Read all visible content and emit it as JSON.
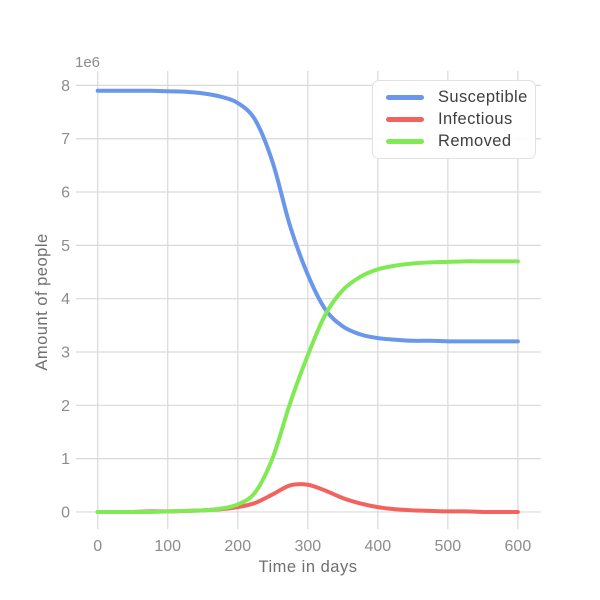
{
  "figure": {
    "background_color": "#ffffff",
    "grid_color": "#d9d9d9",
    "tick_label_color": "#8c8c8c",
    "axis_label_color": "#6f6f6f",
    "legend_text_color": "#3f3f3f",
    "legend_border_color": "#e2e2e2"
  },
  "chart_data": {
    "type": "line",
    "title": "",
    "xlabel": "Time in days",
    "ylabel": "Amount of people",
    "y_offset_label": "1e6",
    "values_unit": "millions of people (axis shows value x 1e6)",
    "grid": true,
    "legend_position": "upper right",
    "xlim": [
      -31,
      633
    ],
    "ylim": [
      -0.32,
      8.27
    ],
    "x_ticks": [
      0,
      100,
      200,
      300,
      400,
      500,
      600
    ],
    "y_ticks": [
      0,
      1,
      2,
      3,
      4,
      5,
      6,
      7,
      8
    ],
    "x": [
      0,
      25,
      50,
      75,
      100,
      125,
      150,
      175,
      200,
      225,
      250,
      275,
      300,
      325,
      350,
      375,
      400,
      425,
      450,
      475,
      500,
      525,
      550,
      575,
      600
    ],
    "series": [
      {
        "name": "Susceptible",
        "color": "#6a96ec",
        "values": [
          7.9,
          7.9,
          7.9,
          7.9,
          7.89,
          7.88,
          7.85,
          7.79,
          7.67,
          7.35,
          6.55,
          5.35,
          4.45,
          3.8,
          3.48,
          3.33,
          3.26,
          3.23,
          3.21,
          3.21,
          3.2,
          3.2,
          3.2,
          3.2,
          3.2
        ]
      },
      {
        "name": "Infectious",
        "color": "#f2635e",
        "values": [
          0.0,
          0.0,
          0.0,
          0.01,
          0.01,
          0.02,
          0.03,
          0.05,
          0.09,
          0.17,
          0.33,
          0.5,
          0.51,
          0.4,
          0.26,
          0.16,
          0.09,
          0.05,
          0.03,
          0.02,
          0.01,
          0.01,
          0.0,
          0.0,
          0.0
        ]
      },
      {
        "name": "Removed",
        "color": "#80ea55",
        "values": [
          0.0,
          0.0,
          0.0,
          0.0,
          0.01,
          0.02,
          0.03,
          0.06,
          0.14,
          0.37,
          1.02,
          2.05,
          2.94,
          3.7,
          4.16,
          4.41,
          4.55,
          4.62,
          4.66,
          4.68,
          4.69,
          4.7,
          4.7,
          4.7,
          4.7
        ]
      }
    ]
  }
}
